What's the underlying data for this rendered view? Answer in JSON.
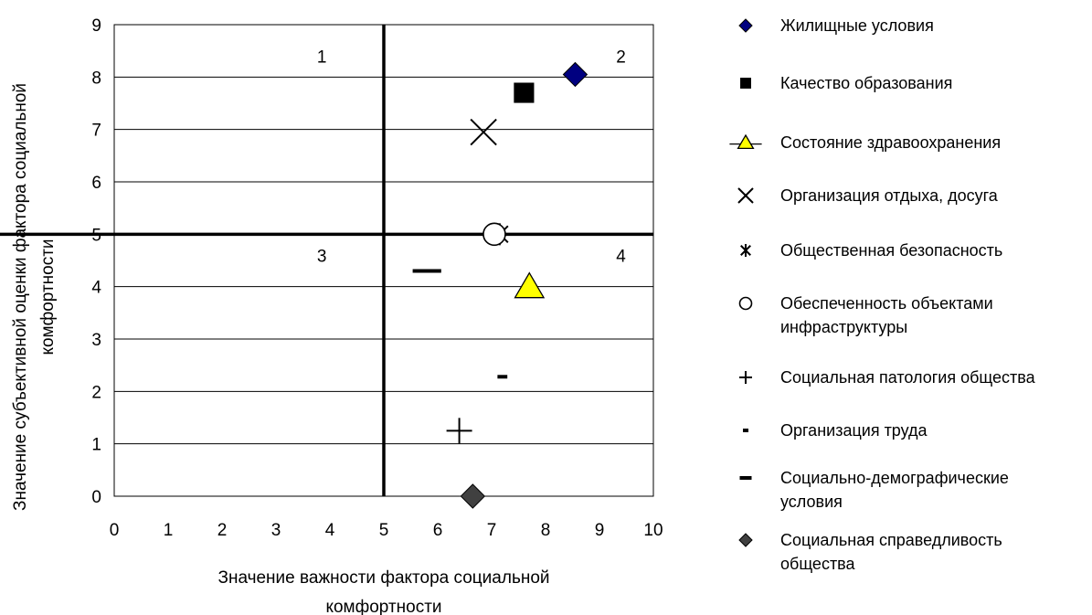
{
  "chart_data": {
    "type": "scatter",
    "xlabel": "Значение важности фактора социальной комфортности",
    "ylabel": "Значение субъективной оценки фактора социальной комфортности",
    "xlim": [
      0,
      10
    ],
    "ylim": [
      0,
      9
    ],
    "xticks": [
      "0",
      "1",
      "2",
      "3",
      "4",
      "5",
      "6",
      "7",
      "8",
      "9",
      "10"
    ],
    "yticks": [
      "0",
      "1",
      "2",
      "3",
      "4",
      "5",
      "6",
      "7",
      "8",
      "9"
    ],
    "grid": "horizontal",
    "legend_position": "right",
    "quadrant_dividers": {
      "x": 5,
      "y": 5
    },
    "quadrant_labels": [
      {
        "label": "1",
        "x": 3.85,
        "y": 8.4
      },
      {
        "label": "2",
        "x": 9.4,
        "y": 8.4
      },
      {
        "label": "3",
        "x": 3.85,
        "y": 4.6
      },
      {
        "label": "4",
        "x": 9.4,
        "y": 4.6
      }
    ],
    "series": [
      {
        "name": "Жилищные условия",
        "marker": "diamond",
        "color": "#000080",
        "x": 8.55,
        "y": 8.05
      },
      {
        "name": "Качество образования",
        "marker": "square",
        "color": "#000000",
        "x": 7.6,
        "y": 7.7
      },
      {
        "name": "Состояние здравоохранения",
        "marker": "triangle",
        "color": "#ffff00",
        "x": 7.7,
        "y": 4.0
      },
      {
        "name": "Организация отдыха, досуга",
        "marker": "x",
        "color": "#000000",
        "x": 6.85,
        "y": 6.95
      },
      {
        "name": "Общественная безопасность",
        "marker": "asterisk",
        "color": "#000000",
        "x": 7.15,
        "y": 5.0
      },
      {
        "name": "Обеспеченность объектами инфраструктуры",
        "marker": "circle",
        "color": "#000000",
        "x": 7.05,
        "y": 5.0
      },
      {
        "name": "Социальная патология общества",
        "marker": "plus",
        "color": "#000000",
        "x": 6.4,
        "y": 1.25
      },
      {
        "name": "Организация труда",
        "marker": "short-dash",
        "color": "#000000",
        "x": 7.2,
        "y": 2.28
      },
      {
        "name": "Социально-демографические условия",
        "marker": "long-dash",
        "color": "#000000",
        "x": 5.8,
        "y": 4.3
      },
      {
        "name": "Социальная справедливость общества",
        "marker": "diamond",
        "color": "#404040",
        "x": 6.65,
        "y": 0.0
      }
    ]
  },
  "legend": {
    "items": [
      {
        "label": "Жилищные условия",
        "marker": "diamond",
        "color": "#000080"
      },
      {
        "label": "Качество образования",
        "marker": "square",
        "color": "#000000"
      },
      {
        "label": "Состояние здравоохранения",
        "marker": "triangle-line",
        "color": "#ffff00"
      },
      {
        "label": "Организация отдыха, досуга",
        "marker": "x",
        "color": "#000000"
      },
      {
        "label": "Общественная безопасность",
        "marker": "asterisk",
        "color": "#000000"
      },
      {
        "label": "Обеспеченность объектами\nинфраструктуры",
        "marker": "circle",
        "color": "#000000"
      },
      {
        "label": "Социальная патология общества",
        "marker": "plus",
        "color": "#000000"
      },
      {
        "label": "Организация труда",
        "marker": "short-dash",
        "color": "#000000"
      },
      {
        "label": "Социально-демографические\nусловия",
        "marker": "long-dash",
        "color": "#000000"
      },
      {
        "label": "Социальная справедливость\nобщества",
        "marker": "diamond",
        "color": "#404040"
      }
    ]
  }
}
